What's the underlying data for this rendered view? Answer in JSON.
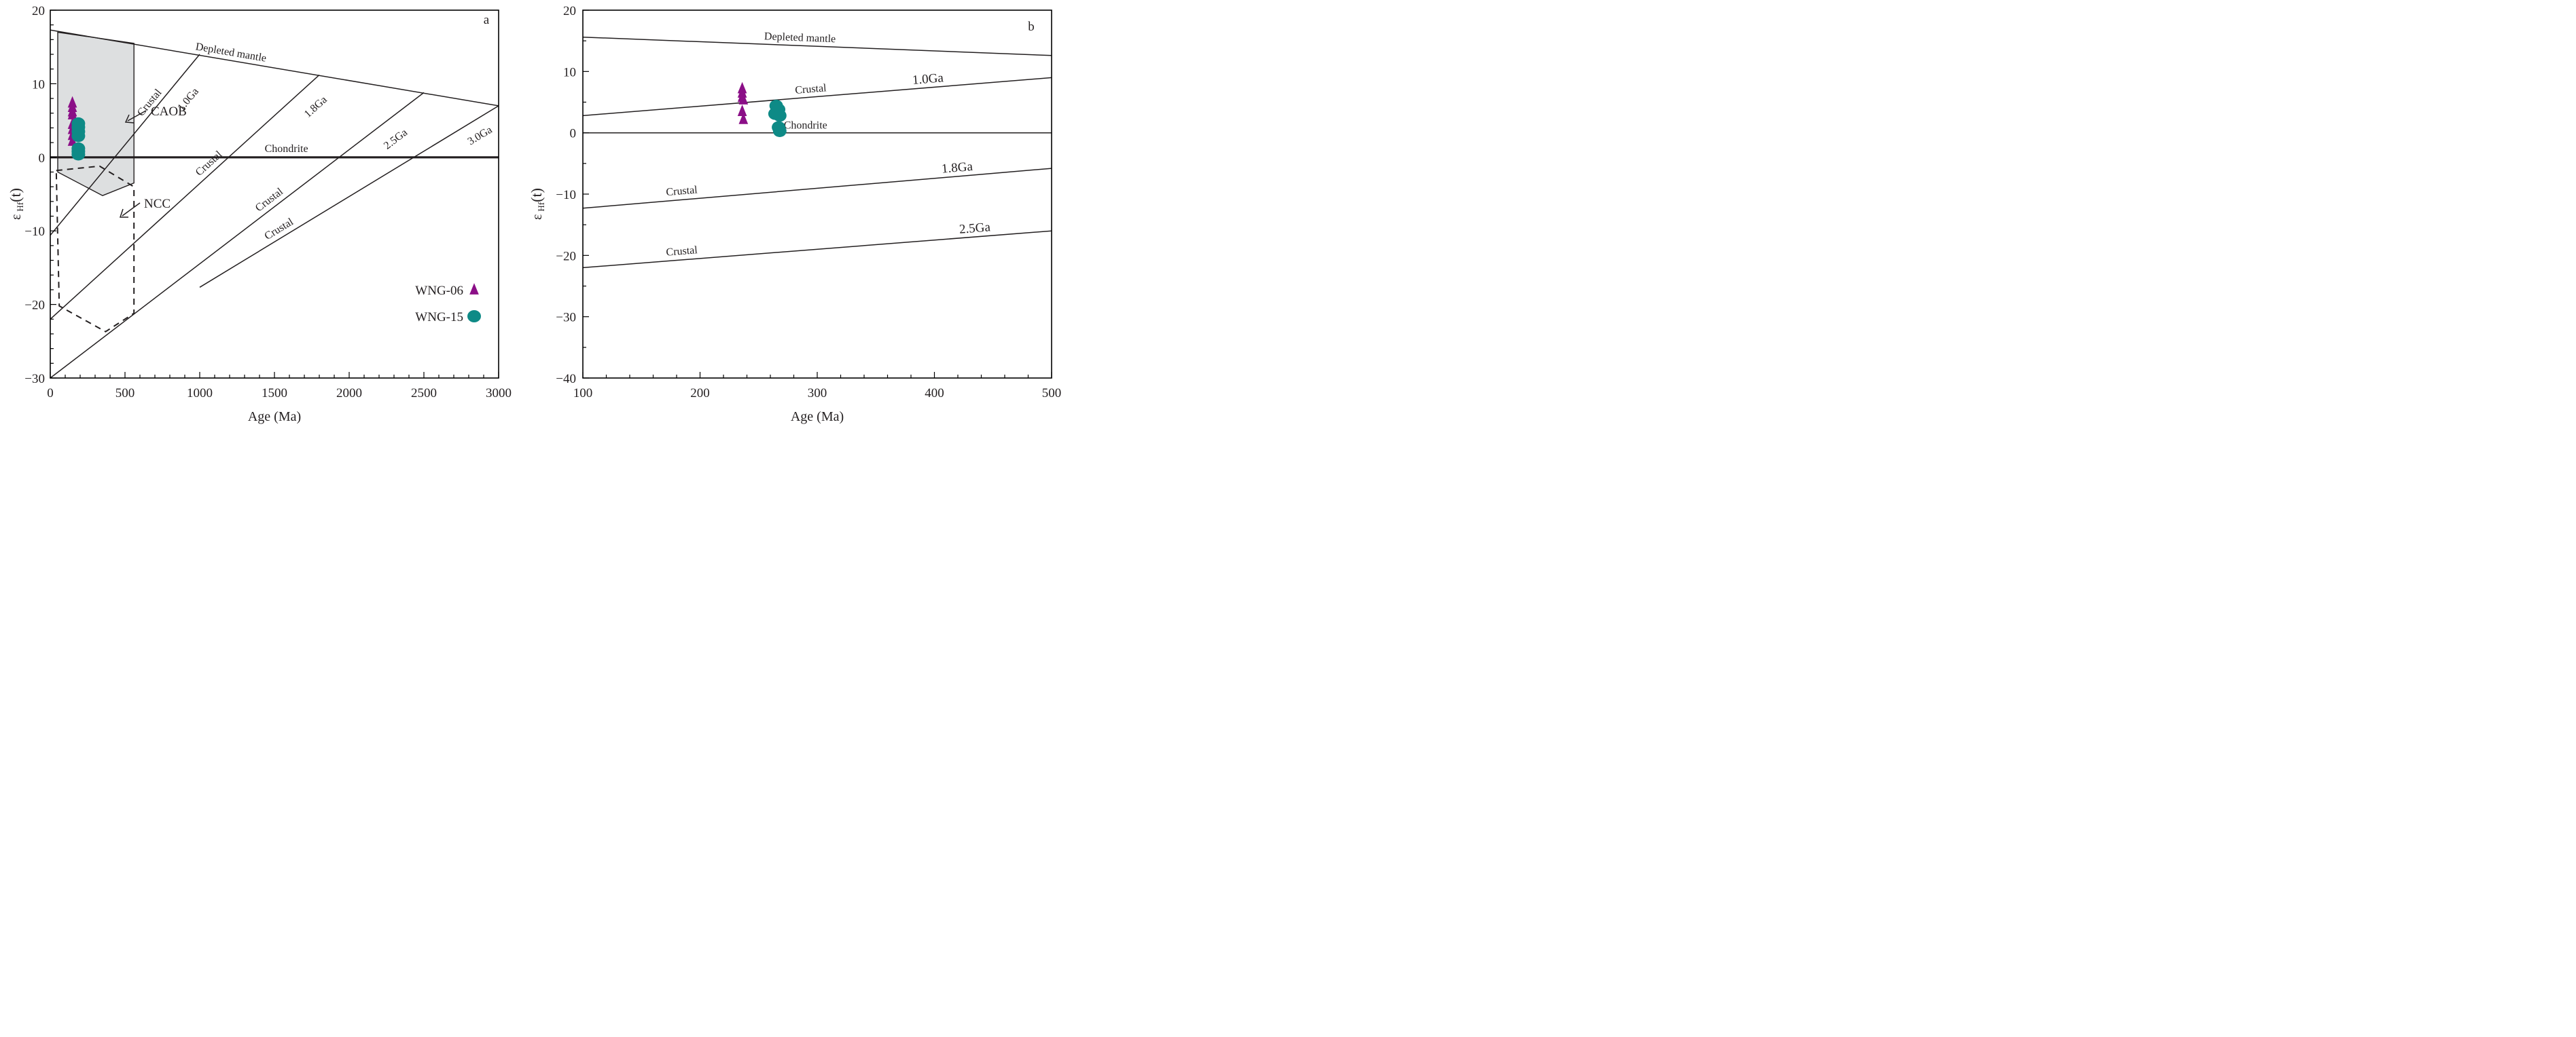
{
  "colors": {
    "triangle": "#8b0f87",
    "circle": "#0e8a86",
    "field": "#dddfe0",
    "line": "#231f20"
  },
  "chart_data": [
    {
      "type": "scatter",
      "panel": "a",
      "xlabel": "Age (Ma)",
      "ylabel_main": "ε",
      "ylabel_sub": "Hf",
      "ylabel_tail": "(t)",
      "xlim": [
        0,
        3000
      ],
      "ylim": [
        -30,
        20
      ],
      "xticks": [
        0,
        500,
        1000,
        1500,
        2000,
        2500,
        3000
      ],
      "yticks": [
        -30,
        -20,
        -10,
        0,
        10,
        20
      ],
      "xtick_labels": [
        "0",
        "500",
        "1000",
        "1500",
        "2000",
        "2500",
        "3000"
      ],
      "ytick_labels": [
        "−30",
        "−20",
        "−10",
        "0",
        "10",
        "20"
      ],
      "reference_lines": [
        {
          "name": "Depleted mantle",
          "x": [
            0,
            3000
          ],
          "y": [
            17.3,
            7.0
          ]
        },
        {
          "name": "Chondrite",
          "x": [
            0,
            3000
          ],
          "y": [
            0,
            0
          ]
        },
        {
          "name": "Crustal 1.0Ga",
          "x": [
            0,
            1000
          ],
          "y": [
            -10.6,
            14.0
          ]
        },
        {
          "name": "Crustal 1.8Ga",
          "x": [
            0,
            1800
          ],
          "y": [
            -22.0,
            11.2
          ]
        },
        {
          "name": "Crustal 2.5Ga",
          "x": [
            0,
            2500
          ],
          "y": [
            -30.0,
            8.8
          ]
        },
        {
          "name": "Crustal 3.0Ga",
          "x": [
            0,
            3000
          ],
          "y": [
            -30.0,
            7.0
          ],
          "clipped_start_x": 1000
        }
      ],
      "fields": [
        {
          "name": "CAOB",
          "style": "shaded",
          "x": [
            50,
            560,
            560,
            350,
            50
          ],
          "y": [
            17.0,
            15.5,
            -3.5,
            -5.2,
            -2.0
          ]
        },
        {
          "name": "NCC",
          "style": "dashed",
          "x": [
            40,
            330,
            560,
            560,
            370,
            60,
            40
          ],
          "y": [
            -1.8,
            -1.2,
            -4.0,
            -21.2,
            -23.7,
            -20.2,
            -1.8
          ]
        }
      ],
      "labels": {
        "panel": "a",
        "depleted_mantle": "Depleted mantle",
        "chondrite": "Chondrite",
        "crustal": "Crustal",
        "g10": "1.0Ga",
        "g18": "1.8Ga",
        "g25": "2.5Ga",
        "g30": "3.0Ga",
        "caob": "CAOB",
        "ncc": "NCC"
      },
      "series": [
        {
          "name": "WNG-06",
          "marker": "triangle",
          "x": [
            148,
            148,
            148,
            148,
            148,
            148,
            148,
            148
          ],
          "y": [
            7.4,
            6.8,
            6.2,
            5.8,
            4.5,
            3.8,
            3.0,
            2.2
          ]
        },
        {
          "name": "WNG-15",
          "marker": "circle",
          "x": [
            188,
            188,
            188,
            188,
            188,
            188,
            188
          ],
          "y": [
            4.6,
            4.1,
            3.5,
            2.9,
            1.2,
            0.8,
            0.4
          ]
        }
      ],
      "legend": {
        "placement": "bottom-right",
        "entries": [
          "WNG-06",
          "WNG-15"
        ]
      }
    },
    {
      "type": "scatter",
      "panel": "b",
      "xlabel": "Age (Ma)",
      "ylabel_main": "ε",
      "ylabel_sub": "Hf",
      "ylabel_tail": "(t)",
      "xlim": [
        100,
        500
      ],
      "ylim": [
        -40,
        20
      ],
      "xticks": [
        100,
        200,
        300,
        400,
        500
      ],
      "yticks": [
        -40,
        -30,
        -20,
        -10,
        0,
        10,
        20
      ],
      "xtick_labels": [
        "100",
        "200",
        "300",
        "400",
        "500"
      ],
      "ytick_labels": [
        "−40",
        "−30",
        "−20",
        "−10",
        "0",
        "10",
        "20"
      ],
      "reference_lines": [
        {
          "name": "Depleted mantle",
          "x": [
            100,
            500
          ],
          "y": [
            15.6,
            12.6
          ]
        },
        {
          "name": "Crustal 1.0Ga",
          "x": [
            100,
            500
          ],
          "y": [
            2.8,
            9.0
          ]
        },
        {
          "name": "Chondrite",
          "x": [
            100,
            500
          ],
          "y": [
            0,
            0
          ]
        },
        {
          "name": "Crustal 1.8Ga",
          "x": [
            100,
            500
          ],
          "y": [
            -12.3,
            -5.8
          ]
        },
        {
          "name": "Crustal 2.5Ga",
          "x": [
            100,
            500
          ],
          "y": [
            -22.0,
            -16.0
          ]
        }
      ],
      "labels": {
        "panel": "b",
        "depleted_mantle": "Depleted mantle",
        "chondrite": "Chondrite",
        "crustal": "Crustal",
        "g10": "1.0Ga",
        "g18": "1.8Ga",
        "g25": "2.5Ga"
      },
      "series": [
        {
          "name": "WNG-06",
          "marker": "triangle",
          "x": [
            236,
            236,
            236,
            237,
            236,
            237
          ],
          "y": [
            7.2,
            6.5,
            5.8,
            5.4,
            3.5,
            2.2
          ]
        },
        {
          "name": "WNG-15",
          "marker": "circle",
          "x": [
            265,
            267,
            264,
            268,
            267,
            268
          ],
          "y": [
            4.4,
            3.8,
            3.1,
            2.8,
            0.9,
            0.3
          ]
        }
      ]
    }
  ]
}
